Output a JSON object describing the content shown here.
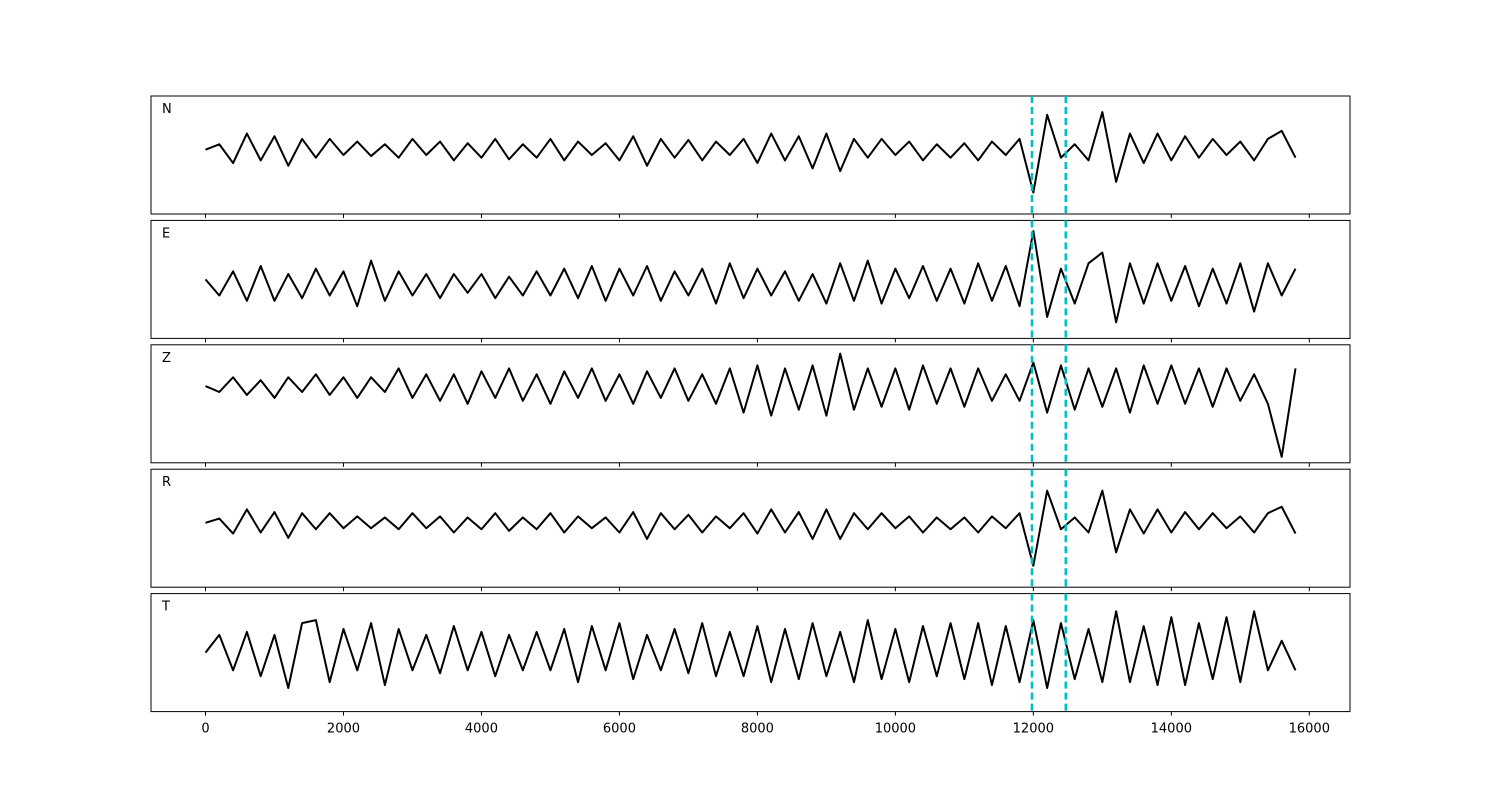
{
  "chart_data": {
    "type": "line",
    "x": [
      0,
      200,
      400,
      600,
      800,
      1000,
      1200,
      1400,
      1600,
      1800,
      2000,
      2200,
      2400,
      2600,
      2800,
      3000,
      3200,
      3400,
      3600,
      3800,
      4000,
      4200,
      4400,
      4600,
      4800,
      5000,
      5200,
      5400,
      5600,
      5800,
      6000,
      6200,
      6400,
      6600,
      6800,
      7000,
      7200,
      7400,
      7600,
      7800,
      8000,
      8200,
      8400,
      8600,
      8800,
      9000,
      9200,
      9400,
      9600,
      9800,
      10000,
      10200,
      10400,
      10600,
      10800,
      11000,
      11200,
      11400,
      11600,
      11800,
      12000,
      12200,
      12400,
      12600,
      12800,
      13000,
      13200,
      13400,
      13600,
      13800,
      14000,
      14200,
      14400,
      14600,
      14800,
      15000,
      15200,
      15400,
      15600,
      15800
    ],
    "xlim": [
      -790,
      16590
    ],
    "xticks": [
      0,
      2000,
      4000,
      6000,
      8000,
      10000,
      12000,
      14000,
      16000
    ],
    "color": "#000000",
    "vlines": [
      11980,
      12470
    ],
    "vline_color": "#00bfbf",
    "panels": [
      {
        "label": "N",
        "ylim": [
          -1.2,
          1.0
        ],
        "values": [
          0,
          0.1,
          -0.25,
          0.3,
          -0.2,
          0.25,
          -0.3,
          0.2,
          -0.15,
          0.2,
          -0.1,
          0.15,
          -0.12,
          0.1,
          -0.15,
          0.2,
          -0.1,
          0.15,
          -0.2,
          0.12,
          -0.15,
          0.2,
          -0.18,
          0.1,
          -0.15,
          0.2,
          -0.2,
          0.15,
          -0.1,
          0.12,
          -0.2,
          0.25,
          -0.3,
          0.2,
          -0.15,
          0.18,
          -0.2,
          0.15,
          -0.1,
          0.2,
          -0.25,
          0.3,
          -0.2,
          0.25,
          -0.35,
          0.3,
          -0.4,
          0.2,
          -0.15,
          0.2,
          -0.1,
          0.15,
          -0.2,
          0.1,
          -0.15,
          0.12,
          -0.2,
          0.15,
          -0.1,
          0.2,
          -0.8,
          0.65,
          -0.15,
          0.1,
          -0.2,
          0.7,
          -0.6,
          0.3,
          -0.25,
          0.3,
          -0.2,
          0.25,
          -0.15,
          0.2,
          -0.1,
          0.15,
          -0.2,
          0.2,
          0.35,
          -0.15
        ]
      },
      {
        "label": "E",
        "ylim": [
          -1.0,
          1.2
        ],
        "values": [
          0.1,
          -0.2,
          0.25,
          -0.3,
          0.35,
          -0.3,
          0.2,
          -0.25,
          0.3,
          -0.2,
          0.25,
          -0.4,
          0.45,
          -0.3,
          0.25,
          -0.2,
          0.2,
          -0.25,
          0.2,
          -0.15,
          0.2,
          -0.25,
          0.15,
          -0.2,
          0.25,
          -0.2,
          0.3,
          -0.25,
          0.35,
          -0.3,
          0.3,
          -0.2,
          0.35,
          -0.3,
          0.25,
          -0.2,
          0.3,
          -0.35,
          0.4,
          -0.25,
          0.3,
          -0.2,
          0.25,
          -0.3,
          0.2,
          -0.35,
          0.4,
          -0.3,
          0.45,
          -0.35,
          0.3,
          -0.25,
          0.35,
          -0.3,
          0.3,
          -0.35,
          0.4,
          -0.3,
          0.35,
          -0.4,
          1.0,
          -0.6,
          0.3,
          -0.35,
          0.4,
          0.6,
          -0.7,
          0.4,
          -0.35,
          0.4,
          -0.3,
          0.35,
          -0.4,
          0.3,
          -0.35,
          0.4,
          -0.5,
          0.4,
          -0.2,
          0.3
        ]
      },
      {
        "label": "Z",
        "ylim": [
          -1.3,
          0.7
        ],
        "values": [
          0,
          -0.1,
          0.15,
          -0.15,
          0.1,
          -0.2,
          0.15,
          -0.1,
          0.2,
          -0.15,
          0.15,
          -0.2,
          0.15,
          -0.1,
          0.3,
          -0.2,
          0.2,
          -0.25,
          0.2,
          -0.3,
          0.25,
          -0.2,
          0.3,
          -0.25,
          0.2,
          -0.3,
          0.25,
          -0.2,
          0.3,
          -0.25,
          0.2,
          -0.3,
          0.25,
          -0.2,
          0.3,
          -0.25,
          0.2,
          -0.3,
          0.3,
          -0.45,
          0.35,
          -0.5,
          0.3,
          -0.4,
          0.35,
          -0.5,
          0.55,
          -0.4,
          0.3,
          -0.35,
          0.3,
          -0.4,
          0.35,
          -0.3,
          0.3,
          -0.35,
          0.3,
          -0.25,
          0.2,
          -0.25,
          0.4,
          -0.45,
          0.35,
          -0.4,
          0.3,
          -0.35,
          0.3,
          -0.45,
          0.35,
          -0.3,
          0.35,
          -0.3,
          0.3,
          -0.35,
          0.3,
          -0.25,
          0.2,
          -0.3,
          -1.2,
          0.3
        ]
      },
      {
        "label": "R",
        "ylim": [
          -1.2,
          1.0
        ],
        "values": [
          0,
          0.08,
          -0.2,
          0.25,
          -0.18,
          0.2,
          -0.28,
          0.18,
          -0.12,
          0.18,
          -0.1,
          0.12,
          -0.1,
          0.1,
          -0.12,
          0.18,
          -0.1,
          0.12,
          -0.18,
          0.1,
          -0.12,
          0.18,
          -0.15,
          0.1,
          -0.12,
          0.18,
          -0.18,
          0.12,
          -0.1,
          0.1,
          -0.18,
          0.2,
          -0.3,
          0.18,
          -0.12,
          0.15,
          -0.18,
          0.12,
          -0.1,
          0.18,
          -0.2,
          0.25,
          -0.18,
          0.2,
          -0.3,
          0.25,
          -0.3,
          0.18,
          -0.12,
          0.18,
          -0.1,
          0.12,
          -0.18,
          0.1,
          -0.12,
          0.1,
          -0.18,
          0.12,
          -0.1,
          0.18,
          -0.8,
          0.6,
          -0.12,
          0.1,
          -0.18,
          0.6,
          -0.55,
          0.25,
          -0.2,
          0.25,
          -0.18,
          0.2,
          -0.12,
          0.18,
          -0.1,
          0.12,
          -0.18,
          0.18,
          0.3,
          -0.2
        ]
      },
      {
        "label": "T",
        "ylim": [
          -1.0,
          1.0
        ],
        "values": [
          0,
          0.3,
          -0.3,
          0.35,
          -0.4,
          0.3,
          -0.6,
          0.5,
          0.55,
          -0.5,
          0.4,
          -0.3,
          0.5,
          -0.55,
          0.4,
          -0.3,
          0.3,
          -0.35,
          0.45,
          -0.3,
          0.35,
          -0.4,
          0.3,
          -0.3,
          0.35,
          -0.3,
          0.4,
          -0.5,
          0.45,
          -0.3,
          0.5,
          -0.45,
          0.3,
          -0.3,
          0.4,
          -0.35,
          0.5,
          -0.4,
          0.35,
          -0.4,
          0.45,
          -0.5,
          0.4,
          -0.45,
          0.5,
          -0.4,
          0.35,
          -0.5,
          0.55,
          -0.45,
          0.4,
          -0.5,
          0.45,
          -0.4,
          0.5,
          -0.45,
          0.5,
          -0.55,
          0.45,
          -0.5,
          0.55,
          -0.6,
          0.5,
          -0.45,
          0.4,
          -0.5,
          0.7,
          -0.5,
          0.45,
          -0.55,
          0.6,
          -0.55,
          0.5,
          -0.45,
          0.6,
          -0.5,
          0.7,
          -0.3,
          0.2,
          -0.3
        ]
      }
    ]
  }
}
